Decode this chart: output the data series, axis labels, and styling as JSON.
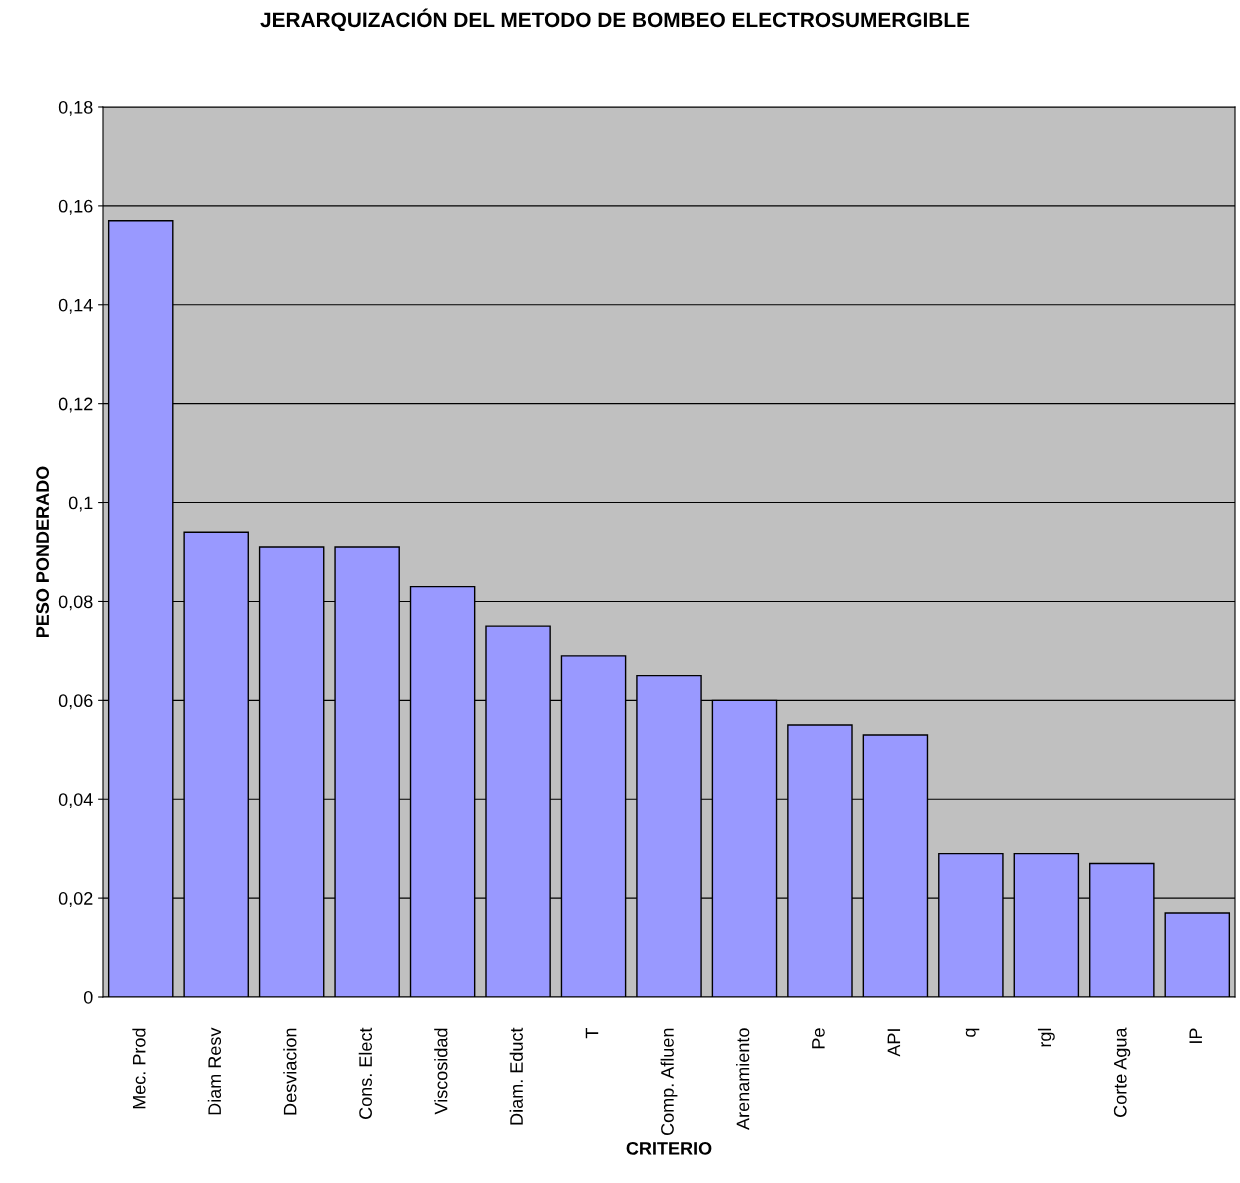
{
  "chart_data": {
    "type": "bar",
    "title": "JERARQUIZACIÓN DEL METODO DE BOMBEO ELECTROSUMERGIBLE",
    "xlabel": "CRITERIO",
    "ylabel": "PESO PONDERADO",
    "categories": [
      "Mec. Prod",
      "Diam Resv",
      "Desviacion",
      "Cons. Elect",
      "Viscosidad",
      "Diam. Educt",
      "T",
      "Comp. Afluen",
      "Arenamiento",
      "Pe",
      "API",
      "q",
      "rgl",
      "Corte Agua",
      "IP"
    ],
    "values": [
      0.157,
      0.094,
      0.091,
      0.091,
      0.083,
      0.075,
      0.069,
      0.065,
      0.06,
      0.055,
      0.053,
      0.029,
      0.029,
      0.027,
      0.017
    ],
    "color": "#9999ff",
    "ylim": [
      0,
      0.18
    ],
    "yticks": [
      0,
      {
        "value": 0.02,
        "label": "0,02"
      },
      {
        "value": 0.04,
        "label": "0,04"
      },
      {
        "value": 0.06,
        "label": "0,06"
      },
      {
        "value": 0.08,
        "label": "0,08"
      },
      {
        "value": 0.1,
        "label": "0,1"
      },
      {
        "value": 0.12,
        "label": "0,12"
      },
      {
        "value": 0.14,
        "label": "0,14"
      },
      {
        "value": 0.16,
        "label": "0,16"
      },
      {
        "value": 0.18,
        "label": "0,18"
      }
    ],
    "grid": "y",
    "legend": false
  }
}
